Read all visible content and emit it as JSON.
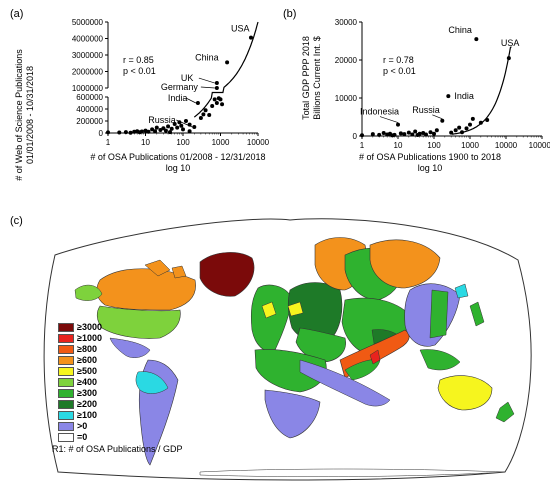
{
  "panels": {
    "a": "(a)",
    "b": "(b)",
    "c": "(c)"
  },
  "chart_data": [
    {
      "type": "scatter",
      "ylabel_line1": "# of Web of Science Publications",
      "ylabel_line2": "01/01/2008 - 10/31/2018",
      "xlabel_line1": "# of OSA Publications 01/2008 - 12/31/2018",
      "xlabel_line2": "log 10",
      "xticks": [
        "1",
        "10",
        "100",
        "1000",
        "10000"
      ],
      "yticks_upper": [
        "1000000",
        "2000000",
        "3000000",
        "4000000",
        "5000000"
      ],
      "yticks_lower": [
        "0",
        "200000",
        "400000",
        "600000"
      ],
      "axis_break_at": 600000,
      "stats": {
        "r": "r = 0.85",
        "p": "p < 0.01"
      },
      "labels": [
        {
          "text": "USA",
          "x": 6500,
          "y": 4050000
        },
        {
          "text": "China",
          "x": 1500,
          "y": 2550000
        },
        {
          "text": "UK",
          "x": 800,
          "y": 1300000
        },
        {
          "text": "Germany",
          "x": 800,
          "y": 1000000
        },
        {
          "text": "India",
          "x": 250,
          "y": 500000
        },
        {
          "text": "Russia",
          "x": 200,
          "y": 100000
        }
      ],
      "points": [
        {
          "x": 1,
          "y": 10000
        },
        {
          "x": 2,
          "y": 8000
        },
        {
          "x": 3,
          "y": 15000
        },
        {
          "x": 4,
          "y": 5000
        },
        {
          "x": 5,
          "y": 20000
        },
        {
          "x": 6,
          "y": 30000
        },
        {
          "x": 7,
          "y": 12000
        },
        {
          "x": 8,
          "y": 25000
        },
        {
          "x": 10,
          "y": 40000
        },
        {
          "x": 12,
          "y": 20000
        },
        {
          "x": 15,
          "y": 60000
        },
        {
          "x": 18,
          "y": 30000
        },
        {
          "x": 20,
          "y": 90000
        },
        {
          "x": 25,
          "y": 50000
        },
        {
          "x": 30,
          "y": 80000
        },
        {
          "x": 35,
          "y": 40000
        },
        {
          "x": 40,
          "y": 110000
        },
        {
          "x": 50,
          "y": 70000
        },
        {
          "x": 60,
          "y": 150000
        },
        {
          "x": 70,
          "y": 90000
        },
        {
          "x": 80,
          "y": 180000
        },
        {
          "x": 90,
          "y": 120000
        },
        {
          "x": 100,
          "y": 60000
        },
        {
          "x": 120,
          "y": 200000
        },
        {
          "x": 150,
          "y": 140000
        },
        {
          "x": 200,
          "y": 100000
        },
        {
          "x": 250,
          "y": 500000
        },
        {
          "x": 300,
          "y": 250000
        },
        {
          "x": 350,
          "y": 310000
        },
        {
          "x": 400,
          "y": 380000
        },
        {
          "x": 500,
          "y": 300000
        },
        {
          "x": 600,
          "y": 450000
        },
        {
          "x": 700,
          "y": 560000
        },
        {
          "x": 800,
          "y": 500000
        },
        {
          "x": 900,
          "y": 580000
        },
        {
          "x": 1000,
          "y": 560000
        },
        {
          "x": 1100,
          "y": 480000
        },
        {
          "x": 800,
          "y": 1000000
        },
        {
          "x": 800,
          "y": 1300000
        },
        {
          "x": 1500,
          "y": 2550000
        },
        {
          "x": 6500,
          "y": 4050000
        },
        {
          "x": 45,
          "y": 15000
        },
        {
          "x": 150,
          "y": 30000
        }
      ]
    },
    {
      "type": "scatter",
      "ylabel_line1": "Total GDP PPP 2018",
      "ylabel_line2": "Billions Current Int. $",
      "xlabel_line1": "# of OSA Publications 1900 to 2018",
      "xlabel_line2": "log 10",
      "xticks": [
        "1",
        "10",
        "100",
        "1000",
        "10000",
        "100000"
      ],
      "yticks": [
        "0",
        "10000",
        "20000",
        "30000"
      ],
      "stats": {
        "r": "r = 0.78",
        "p": "p < 0.01"
      },
      "labels": [
        {
          "text": "China",
          "x": 1500,
          "y": 25500
        },
        {
          "text": "USA",
          "x": 12000,
          "y": 20500
        },
        {
          "text": "India",
          "x": 250,
          "y": 10500
        },
        {
          "text": "Russia",
          "x": 170,
          "y": 4000
        },
        {
          "text": "Indonesia",
          "x": 10,
          "y": 3000
        }
      ],
      "points": [
        {
          "x": 1,
          "y": 200
        },
        {
          "x": 2,
          "y": 500
        },
        {
          "x": 3,
          "y": 300
        },
        {
          "x": 4,
          "y": 800
        },
        {
          "x": 5,
          "y": 400
        },
        {
          "x": 6,
          "y": 600
        },
        {
          "x": 8,
          "y": 300
        },
        {
          "x": 10,
          "y": 3000
        },
        {
          "x": 12,
          "y": 700
        },
        {
          "x": 15,
          "y": 500
        },
        {
          "x": 20,
          "y": 900
        },
        {
          "x": 25,
          "y": 400
        },
        {
          "x": 30,
          "y": 1200
        },
        {
          "x": 40,
          "y": 600
        },
        {
          "x": 50,
          "y": 800
        },
        {
          "x": 60,
          "y": 400
        },
        {
          "x": 80,
          "y": 1000
        },
        {
          "x": 100,
          "y": 600
        },
        {
          "x": 120,
          "y": 1500
        },
        {
          "x": 170,
          "y": 4000
        },
        {
          "x": 250,
          "y": 10500
        },
        {
          "x": 300,
          "y": 900
        },
        {
          "x": 400,
          "y": 1500
        },
        {
          "x": 500,
          "y": 2200
        },
        {
          "x": 600,
          "y": 1000
        },
        {
          "x": 800,
          "y": 2000
        },
        {
          "x": 1000,
          "y": 3000
        },
        {
          "x": 1200,
          "y": 4500
        },
        {
          "x": 1500,
          "y": 25500
        },
        {
          "x": 2000,
          "y": 3500
        },
        {
          "x": 3000,
          "y": 4200
        },
        {
          "x": 12000,
          "y": 20500
        },
        {
          "x": 7,
          "y": 150
        },
        {
          "x": 35,
          "y": 250
        }
      ]
    },
    {
      "type": "choropleth-map",
      "caption": "R1: # of OSA Publications / GDP",
      "legend": [
        {
          "label": "≥3000",
          "color": "#7b0a0a"
        },
        {
          "label": "≥1000",
          "color": "#e8231e"
        },
        {
          "label": "≥800",
          "color": "#f05a14"
        },
        {
          "label": "≥600",
          "color": "#f3921c"
        },
        {
          "label": "≥500",
          "color": "#f6f51e"
        },
        {
          "label": "≥400",
          "color": "#7ed23c"
        },
        {
          "label": "≥300",
          "color": "#2fb22f"
        },
        {
          "label": "≥200",
          "color": "#1e7a28"
        },
        {
          "label": "≥100",
          "color": "#2ad9e3"
        },
        {
          "label": ">0",
          "color": "#8a86e6"
        },
        {
          "label": "=0",
          "color": "#ffffff"
        }
      ]
    }
  ]
}
